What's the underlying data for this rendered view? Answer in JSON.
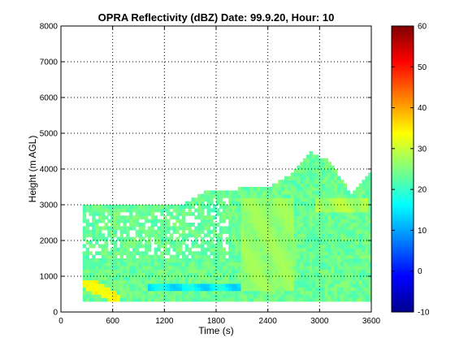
{
  "chart_data": {
    "type": "heatmap",
    "title": "OPRA Reflectivity (dBZ)  Date: 99.9.20, Hour: 10",
    "xlabel": "Time (s)",
    "ylabel": "Height (m AGL)",
    "xlim": [
      0,
      3600
    ],
    "ylim": [
      0,
      8000
    ],
    "xticks": [
      0,
      600,
      1200,
      1800,
      2400,
      3000,
      3600
    ],
    "yticks": [
      0,
      1000,
      2000,
      3000,
      4000,
      5000,
      6000,
      7000,
      8000
    ],
    "grid": true,
    "colormap": "jet",
    "colorbar": {
      "range": [
        -10,
        60
      ],
      "ticks": [
        -10,
        0,
        10,
        20,
        30,
        40,
        50,
        60
      ]
    },
    "echo_regions": [
      {
        "x": [
          250,
          3600
        ],
        "top": [
          3000,
          3000,
          3000,
          2950,
          3000,
          3050,
          3400,
          3400,
          3500,
          3500,
          3800,
          4500,
          4200,
          3300,
          3900
        ],
        "bottom": 300,
        "dominant_dbz": 22
      },
      {
        "x": [
          250,
          700
        ],
        "height": [
          300,
          900
        ],
        "dbz": 32,
        "note": "descending streak"
      },
      {
        "x": [
          2100,
          2700
        ],
        "height": [
          600,
          3200
        ],
        "dbz": 28
      },
      {
        "x": [
          2950,
          3550
        ],
        "height": [
          2800,
          3150
        ],
        "dbz": 30
      },
      {
        "x": [
          1000,
          2100
        ],
        "height": [
          600,
          800
        ],
        "dbz": 12
      }
    ]
  }
}
